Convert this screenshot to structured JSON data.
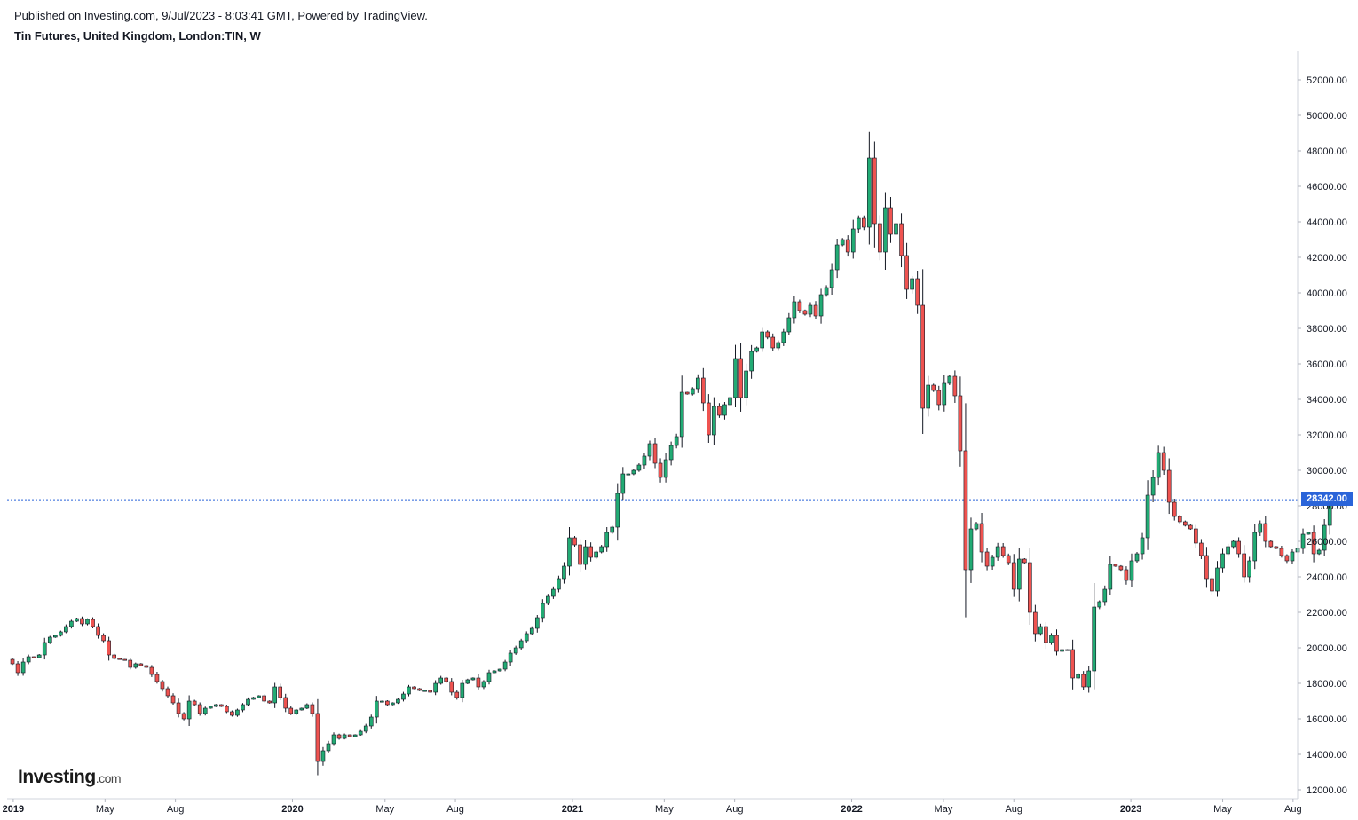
{
  "header": {
    "published": "Published on Investing.com, 9/Jul/2023 - 8:03:41 GMT, Powered by TradingView.",
    "title": "Tin Futures, United Kingdom, London:TIN, W"
  },
  "logo": {
    "brand": "Investing",
    "domain": ".com"
  },
  "colors": {
    "up": "#22ab74",
    "down": "#ef5350",
    "wick": "#131722",
    "last_line": "#2a64d9",
    "axis": "#d1d4dc"
  },
  "chart_data": {
    "type": "candlestick",
    "title": "Tin Futures, United Kingdom, London:TIN, W",
    "interval": "W",
    "last_price": 28342.0,
    "last_price_label": "28342.00",
    "ylim": [
      11500,
      53600
    ],
    "y_ticks": [
      12000,
      14000,
      16000,
      18000,
      20000,
      22000,
      24000,
      26000,
      28000,
      30000,
      32000,
      34000,
      36000,
      38000,
      40000,
      42000,
      44000,
      46000,
      48000,
      50000,
      52000
    ],
    "y_tick_labels": [
      "12000.00",
      "14000.00",
      "16000.00",
      "18000.00",
      "20000.00",
      "22000.00",
      "24000.00",
      "26000.00",
      "28000.00",
      "30000.00",
      "32000.00",
      "34000.00",
      "36000.00",
      "38000.00",
      "40000.00",
      "42000.00",
      "44000.00",
      "46000.00",
      "48000.00",
      "50000.00",
      "52000.00"
    ],
    "x_start": "2018-12-24",
    "x_end": "2023-08-07",
    "x_ticks": [
      {
        "label": "2019",
        "date": "2019-01-01",
        "year": true
      },
      {
        "label": "May",
        "date": "2019-05-01"
      },
      {
        "label": "Aug",
        "date": "2019-08-01"
      },
      {
        "label": "2020",
        "date": "2020-01-01",
        "year": true
      },
      {
        "label": "May",
        "date": "2020-05-01"
      },
      {
        "label": "Aug",
        "date": "2020-08-01"
      },
      {
        "label": "2021",
        "date": "2021-01-01",
        "year": true
      },
      {
        "label": "May",
        "date": "2021-05-01"
      },
      {
        "label": "Aug",
        "date": "2021-08-01"
      },
      {
        "label": "2022",
        "date": "2022-01-01",
        "year": true
      },
      {
        "label": "May",
        "date": "2022-05-01"
      },
      {
        "label": "Aug",
        "date": "2022-08-01"
      },
      {
        "label": "2023",
        "date": "2023-01-01",
        "year": true
      },
      {
        "label": "May",
        "date": "2023-05-01"
      },
      {
        "label": "Aug",
        "date": "2023-08-01"
      }
    ],
    "first_week": "2018-12-31",
    "closes": [
      19100,
      18600,
      19200,
      19500,
      19450,
      19600,
      20300,
      20600,
      20700,
      20900,
      21200,
      21500,
      21650,
      21350,
      21600,
      21200,
      20700,
      20400,
      19600,
      19400,
      19350,
      19300,
      18900,
      19100,
      19000,
      18900,
      18500,
      18100,
      17700,
      17300,
      16900,
      16300,
      16000,
      17000,
      16800,
      16300,
      16600,
      16700,
      16800,
      16700,
      16400,
      16200,
      16500,
      16800,
      17100,
      17200,
      17300,
      17000,
      16900,
      17800,
      17200,
      16600,
      16300,
      16500,
      16600,
      16800,
      16300,
      13600,
      14200,
      14600,
      15100,
      14900,
      15100,
      15000,
      15100,
      15300,
      15600,
      16100,
      17000,
      17000,
      16800,
      16900,
      17100,
      17400,
      17800,
      17700,
      17600,
      17600,
      17500,
      18000,
      18300,
      18100,
      17500,
      17200,
      18000,
      18200,
      18300,
      17800,
      18100,
      18600,
      18700,
      18800,
      19200,
      19700,
      20000,
      20400,
      20800,
      21100,
      21700,
      22500,
      22900,
      23300,
      23900,
      24600,
      26200,
      25800,
      24700,
      25700,
      25100,
      25400,
      25700,
      26500,
      26800,
      28700,
      29800,
      29800,
      30000,
      30300,
      30800,
      31500,
      30400,
      29600,
      30600,
      31400,
      31900,
      34400,
      34300,
      34600,
      35200,
      33800,
      32000,
      33600,
      33100,
      33700,
      34100,
      36300,
      34100,
      35600,
      36700,
      36900,
      37800,
      37500,
      36900,
      37200,
      37800,
      38600,
      39500,
      39000,
      38800,
      39300,
      38700,
      39900,
      40300,
      41300,
      42700,
      43000,
      42300,
      43600,
      44200,
      43700,
      47600,
      43900,
      42300,
      44800,
      43300,
      43900,
      42100,
      40200,
      40800,
      39300,
      33500,
      34800,
      34500,
      33700,
      34900,
      35300,
      34200,
      31100,
      24400,
      26700,
      27000,
      25400,
      24600,
      25100,
      25700,
      25200,
      24800,
      23300,
      25000,
      24800,
      22000,
      20800,
      21200,
      20300,
      20700,
      19800,
      19900,
      19900,
      18300,
      18500,
      17800,
      18700,
      22300,
      22600,
      23300,
      24700,
      24600,
      24400,
      23800,
      24900,
      25300,
      26200,
      28600,
      29600,
      31000,
      30000,
      28200,
      27400,
      27100,
      26900,
      26700,
      25900,
      25200,
      23900,
      23200,
      24500,
      25300,
      25700,
      26000,
      25300,
      24000,
      24900,
      26500,
      27000,
      26000,
      25700,
      25600,
      25200,
      24900,
      25400,
      25600,
      26400,
      26500,
      25300,
      25500,
      26900,
      28342
    ]
  }
}
